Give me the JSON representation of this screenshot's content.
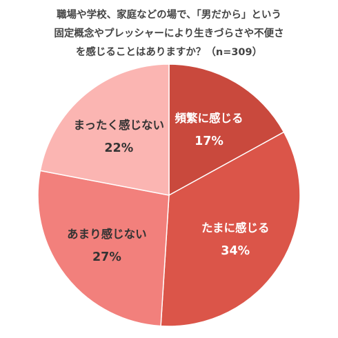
{
  "chart_data": {
    "type": "pie",
    "title_lines": [
      "職場や学校、家庭などの場で、「男だから」という",
      "固定概念やプレッシャーにより生きづらさや不便さ",
      "を感じることはありますか？（n=309）"
    ],
    "slices": [
      {
        "label": "頻繁に感じる",
        "value": 17,
        "pct_label": "17%",
        "color": "#c9493d",
        "text_color": "#ffffff"
      },
      {
        "label": "たまに感じる",
        "value": 34,
        "pct_label": "34%",
        "color": "#db5549",
        "text_color": "#ffffff"
      },
      {
        "label": "あまり感じない",
        "value": 27,
        "pct_label": "27%",
        "color": "#f2807c",
        "text_color": "#333333"
      },
      {
        "label": "まったく感じない",
        "value": 22,
        "pct_label": "22%",
        "color": "#fbb5b2",
        "text_color": "#333333"
      }
    ],
    "start_angle_deg": 0,
    "direction": "clockwise",
    "legend": "none"
  }
}
